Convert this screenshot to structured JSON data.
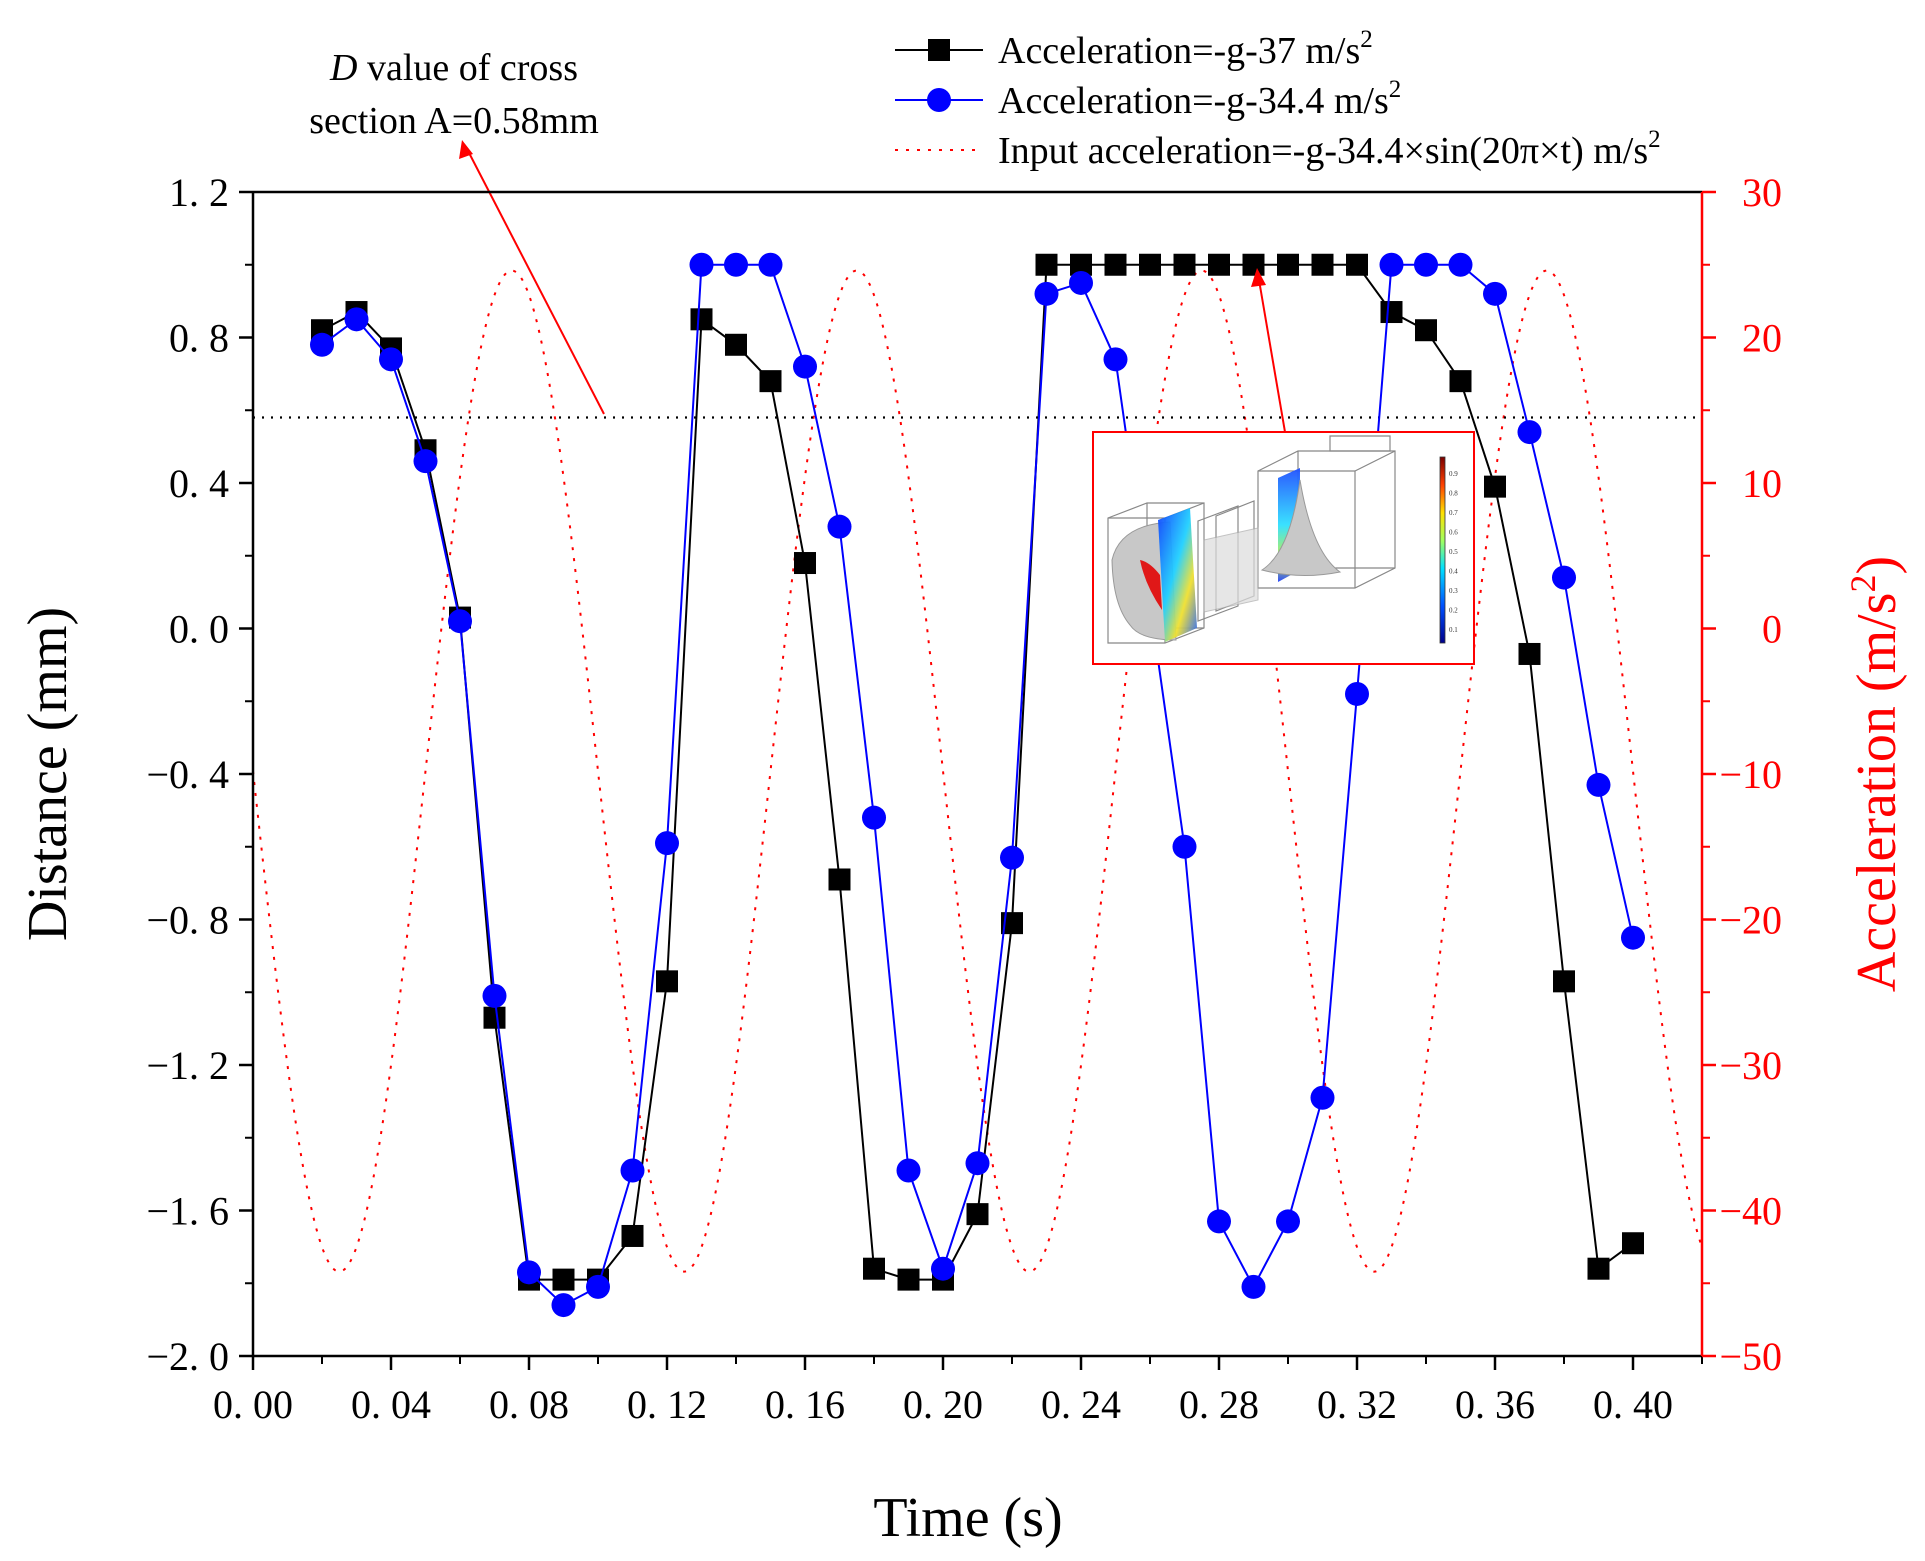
{
  "chart_data": {
    "type": "line",
    "xlabel": "Time (s)",
    "ylabel": "Distance (mm)",
    "y2label": "Acceleration (m/s²)",
    "y2label_main": "Acceleration (m/s",
    "y2label_sup": "2",
    "y2label_close": ")",
    "xlim": [
      0,
      0.42
    ],
    "ylim": [
      -2.0,
      1.2
    ],
    "y2lim": [
      -50,
      30
    ],
    "xticks": [
      "0. 00",
      "0. 04",
      "0. 08",
      "0. 12",
      "0. 16",
      "0. 20",
      "0. 24",
      "0. 28",
      "0. 32",
      "0. 36",
      "0. 40"
    ],
    "xtick_values": [
      0,
      0.04,
      0.08,
      0.12,
      0.16,
      0.2,
      0.24,
      0.28,
      0.32,
      0.36,
      0.4
    ],
    "yticks": [
      "1. 2",
      "0. 8",
      "0. 4",
      "0. 0",
      "−0. 4",
      "−0. 8",
      "−1. 2",
      "−1. 6",
      "−2. 0"
    ],
    "ytick_values": [
      1.2,
      0.8,
      0.4,
      0.0,
      -0.4,
      -0.8,
      -1.2,
      -1.6,
      -2.0
    ],
    "y2ticks": [
      "30",
      "20",
      "10",
      "0",
      "−10",
      "−20",
      "−30",
      "−40",
      "−50"
    ],
    "y2tick_values": [
      30,
      20,
      10,
      0,
      -10,
      -20,
      -30,
      -40,
      -50
    ],
    "reference_line": {
      "y": 0.58,
      "style": "dotted",
      "color": "#000000"
    },
    "series": [
      {
        "name": "Acceleration=-g-37 m/s²",
        "legend_main": "Acceleration=-g-37 m/s",
        "legend_sup": "2",
        "color": "#000000",
        "marker": "square",
        "x": [
          0.02,
          0.03,
          0.04,
          0.05,
          0.06,
          0.07,
          0.08,
          0.09,
          0.1,
          0.11,
          0.12,
          0.13,
          0.14,
          0.15,
          0.16,
          0.17,
          0.18,
          0.19,
          0.2,
          0.21,
          0.22,
          0.23,
          0.24,
          0.25,
          0.26,
          0.27,
          0.28,
          0.29,
          0.3,
          0.31,
          0.32,
          0.33,
          0.34,
          0.35,
          0.36,
          0.37,
          0.38,
          0.39,
          0.4
        ],
        "values": [
          0.82,
          0.87,
          0.77,
          0.49,
          0.03,
          -1.07,
          -1.79,
          -1.79,
          -1.79,
          -1.67,
          -0.97,
          0.85,
          0.78,
          0.68,
          0.18,
          -0.69,
          -1.76,
          -1.79,
          -1.79,
          -1.61,
          -0.81,
          1.0,
          1.0,
          1.0,
          1.0,
          1.0,
          1.0,
          1.0,
          1.0,
          1.0,
          1.0,
          0.87,
          0.82,
          0.68,
          0.39,
          -0.07,
          -0.97,
          -1.76,
          -1.69
        ]
      },
      {
        "name": "Acceleration=-g-34.4 m/s²",
        "legend_main": "Acceleration=-g-34.4 m/s",
        "legend_sup": "2",
        "color": "#0000ff",
        "marker": "circle",
        "x": [
          0.02,
          0.03,
          0.04,
          0.05,
          0.06,
          0.07,
          0.08,
          0.09,
          0.1,
          0.11,
          0.12,
          0.13,
          0.14,
          0.15,
          0.16,
          0.17,
          0.18,
          0.19,
          0.2,
          0.21,
          0.22,
          0.23,
          0.24,
          0.25,
          0.27,
          0.28,
          0.29,
          0.3,
          0.31,
          0.32,
          0.33,
          0.34,
          0.35,
          0.36,
          0.37,
          0.38,
          0.39,
          0.4
        ],
        "values": [
          0.78,
          0.85,
          0.74,
          0.46,
          0.02,
          -1.01,
          -1.77,
          -1.86,
          -1.81,
          -1.49,
          -0.59,
          1.0,
          1.0,
          1.0,
          0.72,
          0.28,
          -0.52,
          -1.49,
          -1.76,
          -1.47,
          -0.63,
          0.92,
          0.95,
          0.74,
          -0.6,
          -1.63,
          -1.81,
          -1.63,
          -1.29,
          -0.18,
          1.0,
          1.0,
          1.0,
          0.92,
          0.54,
          0.14,
          -0.43,
          -0.85
        ]
      },
      {
        "name": "Input acceleration=-g-34.4×sin(20π×t) m/s²",
        "legend_main": "Input acceleration=-g-34.4×sin(20π×t) m/s",
        "legend_sup": "2",
        "color": "#ff0000",
        "style": "dotted",
        "axis": "right",
        "g": 9.8,
        "amplitude": 34.4,
        "omega_over_pi": 20
      }
    ]
  },
  "annotations": {
    "d_value_line1_italic": "D",
    "d_value_line1_rest": " value of cross",
    "d_value_line2": "section A=0.58mm"
  },
  "inset": {
    "colorbar_labels": [
      "0.9",
      "0.8",
      "0.7",
      "0.6",
      "0.5",
      "0.4",
      "0.3",
      "0.2",
      "0.1"
    ]
  }
}
